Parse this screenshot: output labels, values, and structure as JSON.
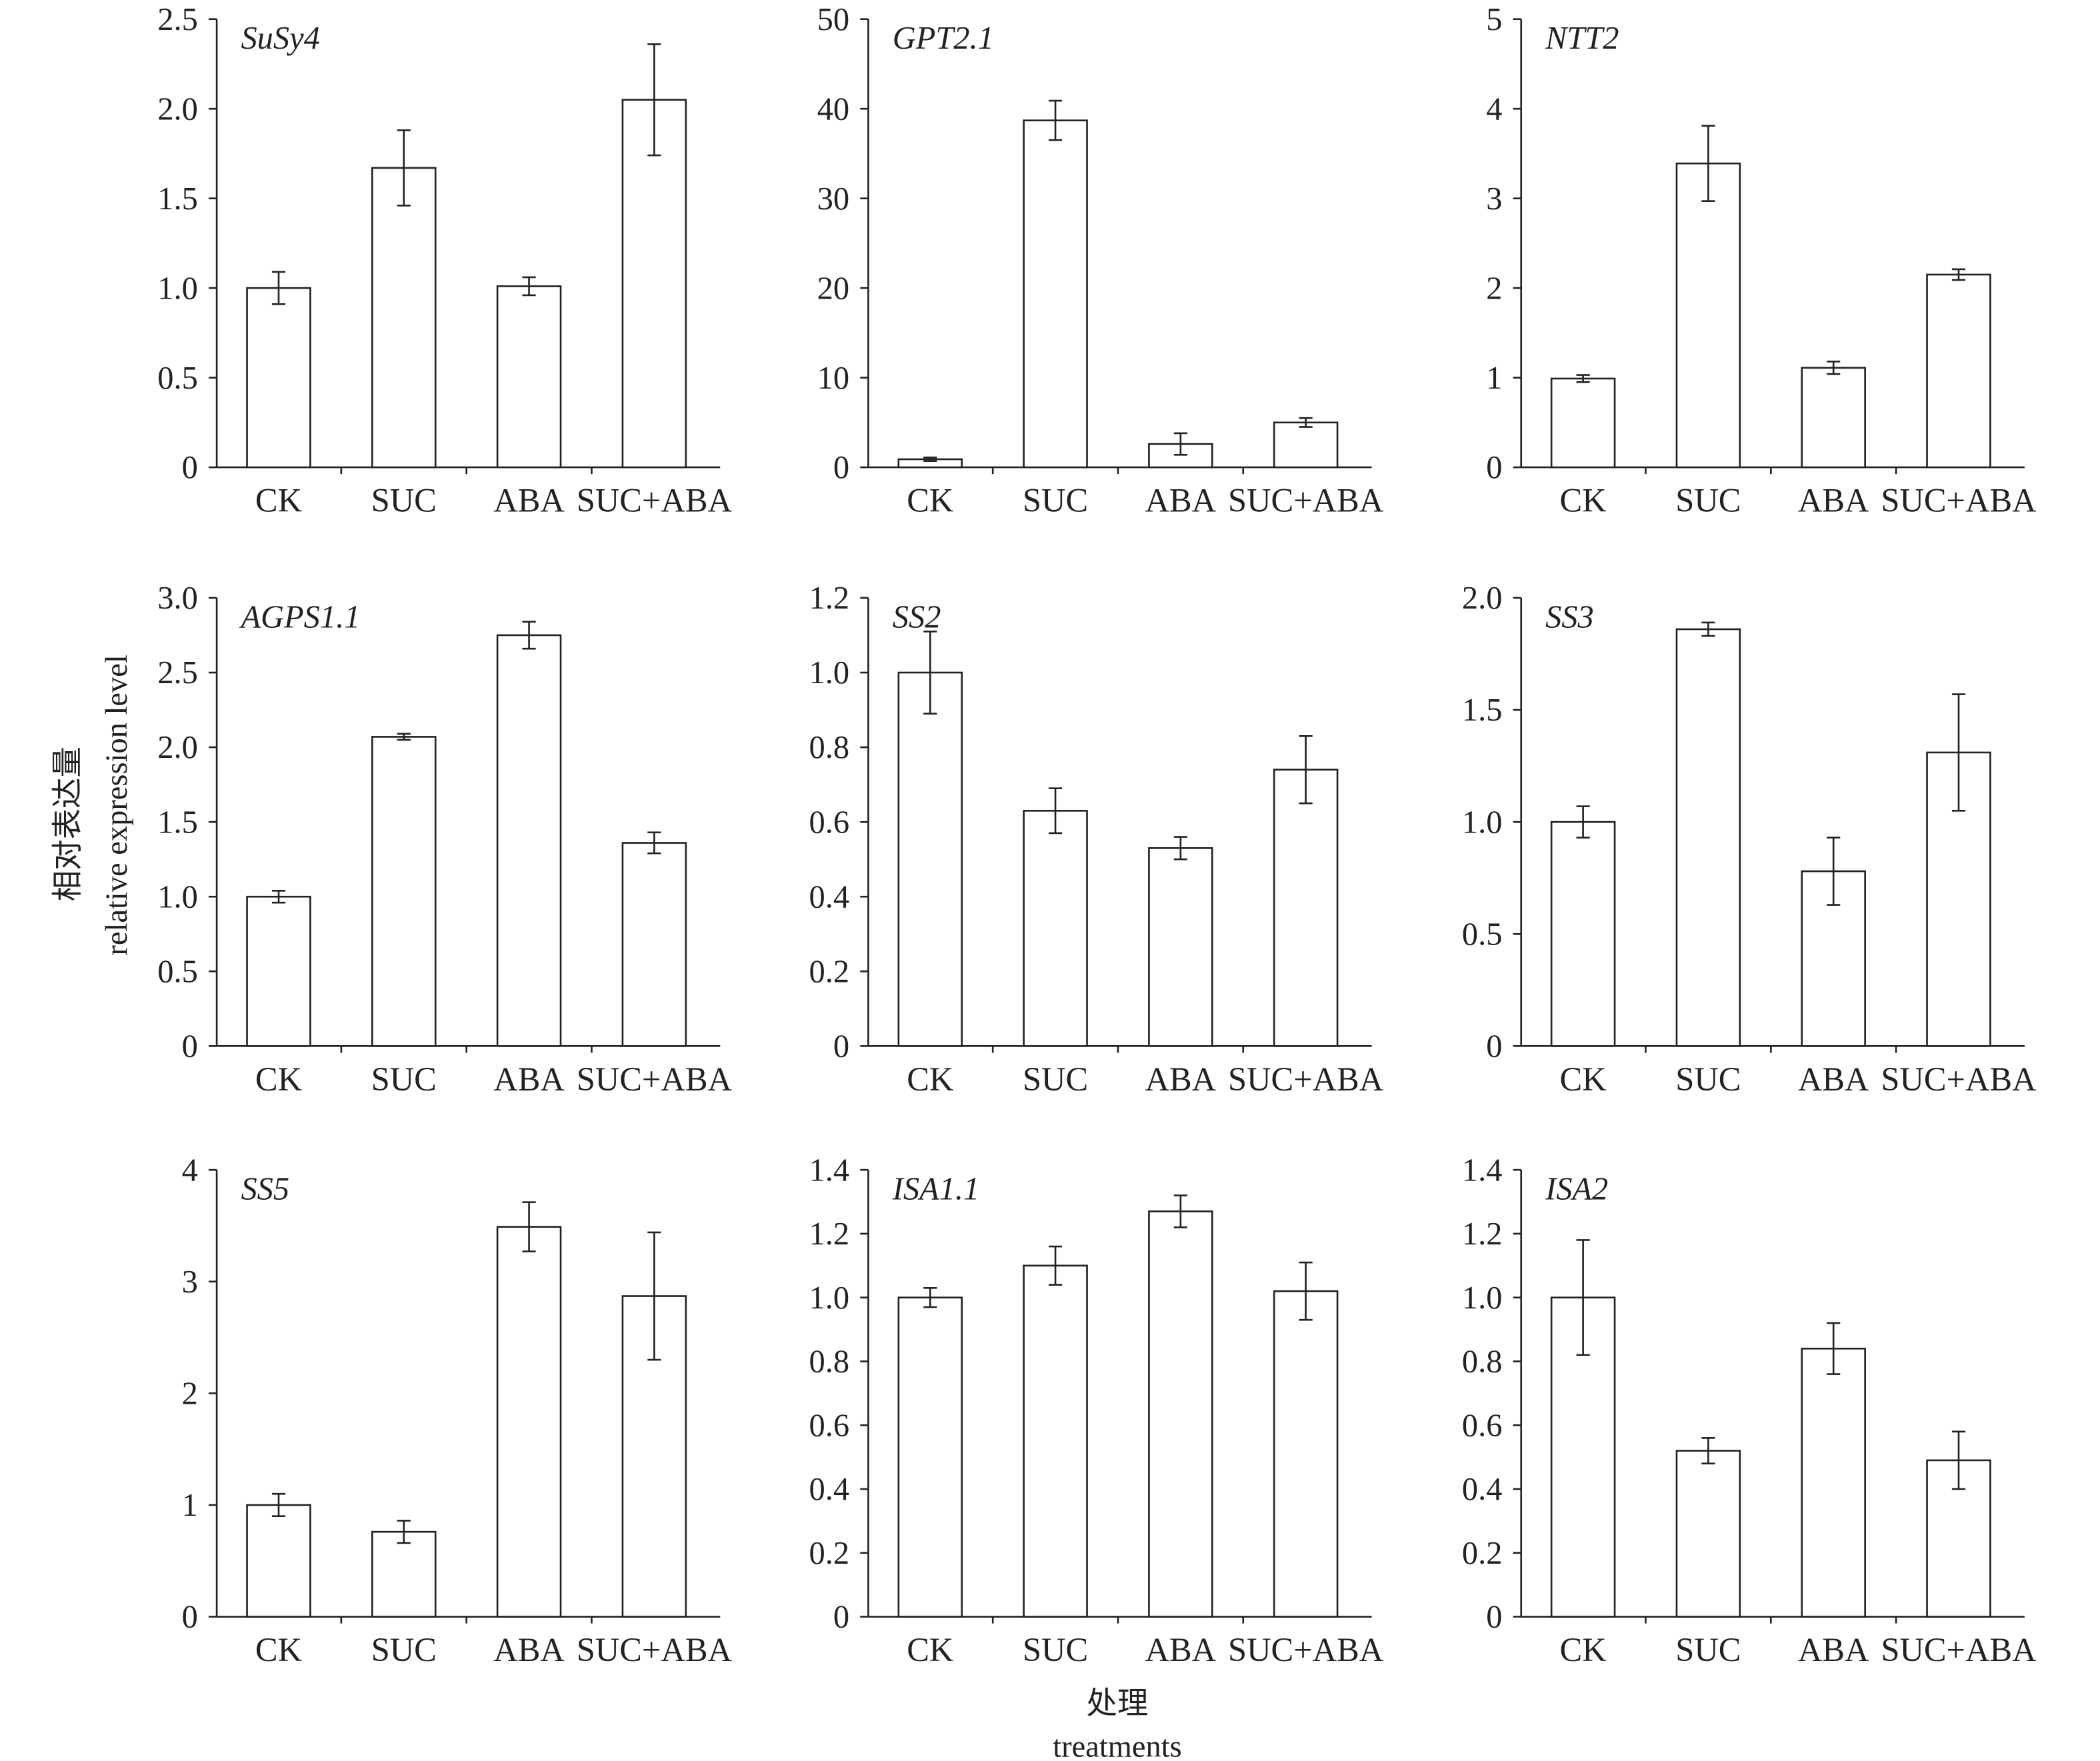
{
  "ylabel_cn": "相对表达量",
  "ylabel_en": "relative expression level",
  "xlabel_cn": "处理",
  "xlabel_en": "treatments",
  "chart_data": [
    {
      "type": "bar",
      "title": "SuSy4",
      "categories": [
        "CK",
        "SUC",
        "ABA",
        "SUC+ABA"
      ],
      "values": [
        1.0,
        1.67,
        1.01,
        2.05
      ],
      "errors": [
        0.09,
        0.21,
        0.05,
        0.31
      ],
      "ylim": [
        0,
        2.5
      ],
      "yticks": [
        "0",
        "0.5",
        "1.0",
        "1.5",
        "2.0",
        "2.5"
      ]
    },
    {
      "type": "bar",
      "title": "GPT2.1",
      "categories": [
        "CK",
        "SUC",
        "ABA",
        "SUC+ABA"
      ],
      "values": [
        0.9,
        38.7,
        2.6,
        5.0
      ],
      "errors": [
        0.2,
        2.2,
        1.2,
        0.5
      ],
      "ylim": [
        0,
        50
      ],
      "yticks": [
        "0",
        "10",
        "20",
        "30",
        "40",
        "50"
      ]
    },
    {
      "type": "bar",
      "title": "NTT2",
      "categories": [
        "CK",
        "SUC",
        "ABA",
        "SUC+ABA"
      ],
      "values": [
        0.99,
        3.39,
        1.11,
        2.15
      ],
      "errors": [
        0.04,
        0.42,
        0.07,
        0.06
      ],
      "ylim": [
        0,
        5
      ],
      "yticks": [
        "0",
        "1",
        "2",
        "3",
        "4",
        "5"
      ]
    },
    {
      "type": "bar",
      "title": "AGPS1.1",
      "categories": [
        "CK",
        "SUC",
        "ABA",
        "SUC+ABA"
      ],
      "values": [
        1.0,
        2.07,
        2.75,
        1.36
      ],
      "errors": [
        0.04,
        0.02,
        0.09,
        0.07
      ],
      "ylim": [
        0,
        3.0
      ],
      "yticks": [
        "0",
        "0.5",
        "1.0",
        "1.5",
        "2.0",
        "2.5",
        "3.0"
      ]
    },
    {
      "type": "bar",
      "title": "SS2",
      "categories": [
        "CK",
        "SUC",
        "ABA",
        "SUC+ABA"
      ],
      "values": [
        1.0,
        0.63,
        0.53,
        0.74
      ],
      "errors": [
        0.11,
        0.06,
        0.03,
        0.09
      ],
      "ylim": [
        0,
        1.2
      ],
      "yticks": [
        "0",
        "0.2",
        "0.4",
        "0.6",
        "0.8",
        "1.0",
        "1.2"
      ]
    },
    {
      "type": "bar",
      "title": "SS3",
      "categories": [
        "CK",
        "SUC",
        "ABA",
        "SUC+ABA"
      ],
      "values": [
        1.0,
        1.86,
        0.78,
        1.31
      ],
      "errors": [
        0.07,
        0.03,
        0.15,
        0.26
      ],
      "ylim": [
        0,
        2.0
      ],
      "yticks": [
        "0",
        "0.5",
        "1.0",
        "1.5",
        "2.0"
      ]
    },
    {
      "type": "bar",
      "title": "SS5",
      "categories": [
        "CK",
        "SUC",
        "ABA",
        "SUC+ABA"
      ],
      "values": [
        1.0,
        0.76,
        3.49,
        2.87
      ],
      "errors": [
        0.1,
        0.1,
        0.22,
        0.57
      ],
      "ylim": [
        0,
        4
      ],
      "yticks": [
        "0",
        "1",
        "2",
        "3",
        "4"
      ]
    },
    {
      "type": "bar",
      "title": "ISA1.1",
      "categories": [
        "CK",
        "SUC",
        "ABA",
        "SUC+ABA"
      ],
      "values": [
        1.0,
        1.1,
        1.27,
        1.02
      ],
      "errors": [
        0.03,
        0.06,
        0.05,
        0.09
      ],
      "ylim": [
        0,
        1.4
      ],
      "yticks": [
        "0",
        "0.2",
        "0.4",
        "0.6",
        "0.8",
        "1.0",
        "1.2",
        "1.4"
      ]
    },
    {
      "type": "bar",
      "title": "ISA2",
      "categories": [
        "CK",
        "SUC",
        "ABA",
        "SUC+ABA"
      ],
      "values": [
        1.0,
        0.52,
        0.84,
        0.49
      ],
      "errors": [
        0.18,
        0.04,
        0.08,
        0.09
      ],
      "ylim": [
        0,
        1.4
      ],
      "yticks": [
        "0",
        "0.2",
        "0.4",
        "0.6",
        "0.8",
        "1.0",
        "1.2",
        "1.4"
      ]
    }
  ]
}
